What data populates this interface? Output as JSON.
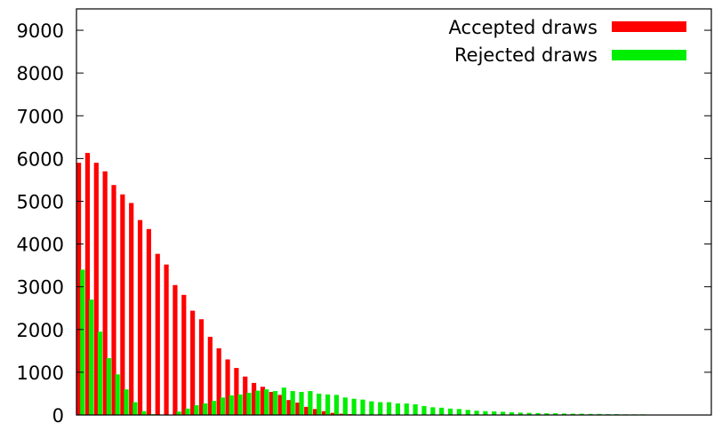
{
  "chart_data": {
    "type": "bar",
    "title": "",
    "xlabel": "",
    "ylabel": "",
    "ylim": [
      0,
      9500
    ],
    "yticks": [
      0,
      1000,
      2000,
      3000,
      4000,
      5000,
      6000,
      7000,
      8000,
      9000
    ],
    "grid": false,
    "legend_position": "top-right",
    "x_count": 70,
    "series": [
      {
        "name": "Accepted draws",
        "color": "#ff0000",
        "values": [
          5900,
          6130,
          5900,
          5700,
          5380,
          5160,
          4960,
          4560,
          4350,
          3770,
          3520,
          3040,
          2810,
          2440,
          2240,
          1830,
          1560,
          1300,
          1100,
          900,
          750,
          660,
          540,
          470,
          350,
          290,
          190,
          140,
          90,
          50,
          30,
          20,
          10,
          5,
          5,
          5,
          0,
          0,
          0,
          0,
          0,
          0,
          0,
          0,
          0,
          0,
          0,
          0,
          0,
          0,
          0,
          0,
          0,
          0,
          0,
          0,
          0,
          0,
          0,
          0,
          0,
          0,
          0,
          0,
          0,
          0,
          0,
          0,
          0,
          0
        ]
      },
      {
        "name": "Rejected draws",
        "color": "#00ee00",
        "values": [
          3400,
          2700,
          1950,
          1330,
          950,
          600,
          300,
          90,
          20,
          10,
          10,
          80,
          150,
          230,
          270,
          330,
          410,
          460,
          480,
          520,
          570,
          600,
          560,
          640,
          560,
          540,
          560,
          500,
          480,
          470,
          410,
          380,
          360,
          320,
          300,
          300,
          270,
          270,
          250,
          210,
          180,
          170,
          150,
          140,
          120,
          100,
          90,
          85,
          75,
          65,
          55,
          50,
          45,
          40,
          40,
          35,
          30,
          30,
          25,
          25,
          20,
          20,
          15,
          15,
          15,
          10,
          10,
          10,
          8,
          5
        ]
      }
    ]
  }
}
